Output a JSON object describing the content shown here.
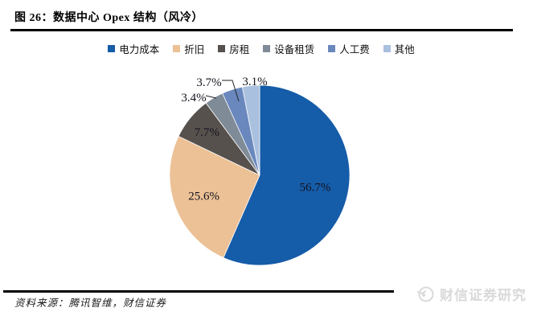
{
  "header": {
    "title": "图 26：数据中心 Opex 结构（风冷）"
  },
  "chart_data": {
    "type": "pie",
    "title": "数据中心 Opex 结构（风冷）",
    "categories": [
      "电力成本",
      "折旧",
      "房租",
      "设备租赁",
      "人工费",
      "其他"
    ],
    "values": [
      56.7,
      25.6,
      7.7,
      3.4,
      3.7,
      3.1
    ],
    "unit": "%",
    "colors": [
      "#155CA9",
      "#ECC196",
      "#57514E",
      "#7F8B97",
      "#6A88BE",
      "#A9C0DE"
    ],
    "legend_position": "top",
    "label_format": "percent",
    "start_angle": "12-oclock, clockwise"
  },
  "footer": {
    "source": "资料来源：腾讯智维，财信证券",
    "watermark": "财信证券研究"
  }
}
